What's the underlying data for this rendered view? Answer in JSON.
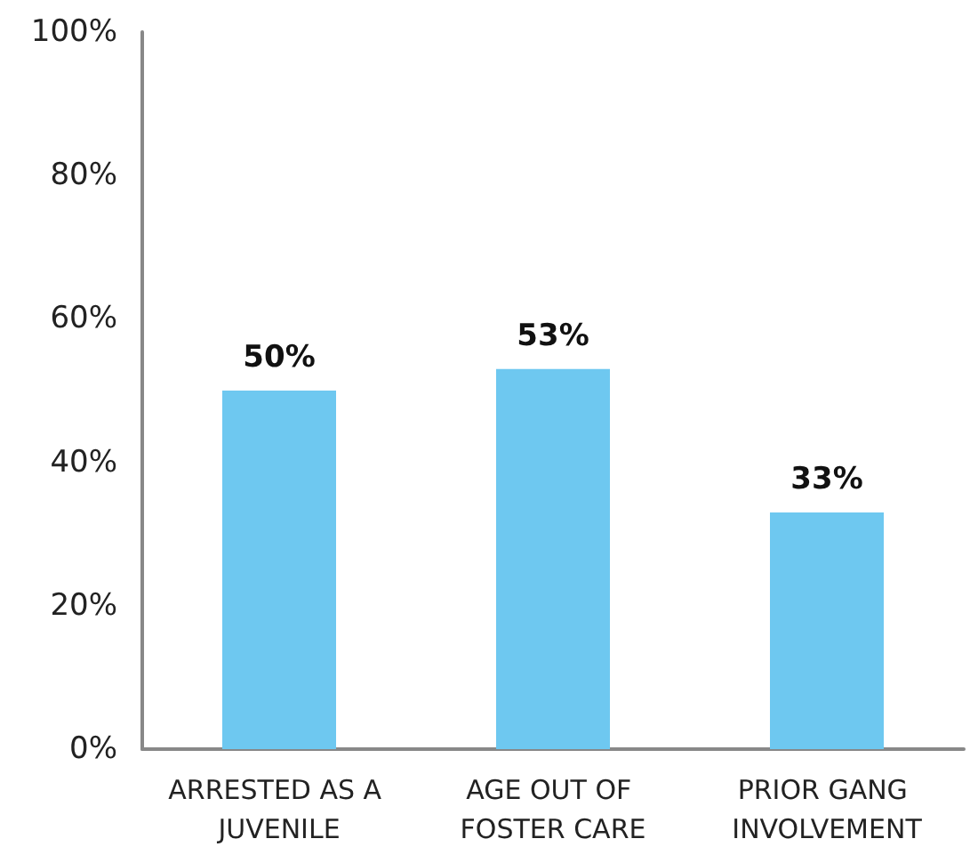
{
  "chart_data": {
    "type": "bar",
    "categories": [
      "ARRESTED AS A JUVENILE",
      "AGE OUT OF FOSTER CARE",
      "PRIOR GANG INVOLVEMENT"
    ],
    "values": [
      50,
      53,
      33
    ],
    "value_labels": [
      "50%",
      "53%",
      "33%"
    ],
    "color": "#6ec8f0",
    "ylim": [
      0,
      100
    ],
    "yticks": [
      {
        "value": 0,
        "label": "0%"
      },
      {
        "value": 20,
        "label": "20%"
      },
      {
        "value": 40,
        "label": "40%"
      },
      {
        "value": 60,
        "label": "60%"
      },
      {
        "value": 80,
        "label": "80%"
      },
      {
        "value": 100,
        "label": "100%"
      }
    ]
  }
}
